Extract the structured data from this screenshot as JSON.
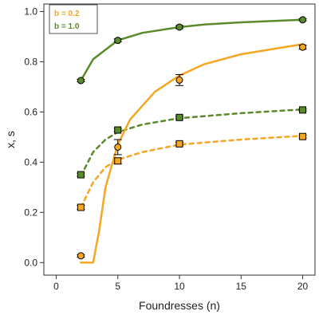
{
  "chart_data": {
    "type": "line",
    "xlabel": "Foundresses (n)",
    "ylabel": "x, s",
    "xlim": [
      -1,
      21
    ],
    "ylim": [
      -0.05,
      1.03
    ],
    "x_ticks": [
      0,
      5,
      10,
      15,
      20
    ],
    "y_ticks": [
      0.0,
      0.2,
      0.4,
      0.6,
      0.8,
      1.0
    ],
    "x_tick_labels": [
      "0",
      "5",
      "10",
      "15",
      "20"
    ],
    "y_tick_labels": [
      "0.0",
      "0.2",
      "0.4",
      "0.6",
      "0.8",
      "1.0"
    ],
    "grid": false,
    "legend_position": "top-left",
    "legend": [
      {
        "label": "b = 0.2",
        "color": "#f5a623"
      },
      {
        "label": "b = 1.0",
        "color": "#5b8a2a"
      }
    ],
    "series": [
      {
        "group": "b = 1.0",
        "variable": "x",
        "kind": "model",
        "style": "solid",
        "color": "#5b8a2a",
        "x": [
          2,
          3,
          5,
          7,
          10,
          12,
          15,
          20
        ],
        "y": [
          0.725,
          0.81,
          0.885,
          0.915,
          0.938,
          0.948,
          0.957,
          0.967
        ]
      },
      {
        "group": "b = 1.0",
        "variable": "x",
        "kind": "observed",
        "marker": "circle",
        "color": "#5b8a2a",
        "x": [
          2,
          5,
          10,
          20
        ],
        "y": [
          0.725,
          0.885,
          0.938,
          0.967
        ],
        "err": [
          0.005,
          0.006,
          0.006,
          0.004
        ]
      },
      {
        "group": "b = 1.0",
        "variable": "s",
        "kind": "model",
        "style": "dashed",
        "color": "#5b8a2a",
        "x": [
          2,
          3,
          4,
          5,
          7,
          10,
          15,
          20
        ],
        "y": [
          0.345,
          0.44,
          0.49,
          0.52,
          0.55,
          0.575,
          0.595,
          0.61
        ]
      },
      {
        "group": "b = 1.0",
        "variable": "s",
        "kind": "observed",
        "marker": "square",
        "color": "#5b8a2a",
        "x": [
          2,
          5,
          10,
          20
        ],
        "y": [
          0.35,
          0.528,
          0.578,
          0.608
        ],
        "err": [
          0.006,
          0.006,
          0.005,
          0.004
        ]
      },
      {
        "group": "b = 0.2",
        "variable": "x",
        "kind": "model",
        "style": "solid",
        "color": "#f5a623",
        "x": [
          2,
          3,
          3.5,
          4,
          5,
          6,
          8,
          10,
          12,
          15,
          20
        ],
        "y": [
          0.0,
          0.0,
          0.13,
          0.3,
          0.47,
          0.57,
          0.68,
          0.745,
          0.79,
          0.83,
          0.87
        ]
      },
      {
        "group": "b = 0.2",
        "variable": "x",
        "kind": "observed",
        "marker": "circle",
        "color": "#f5a623",
        "x": [
          2,
          5,
          10,
          20
        ],
        "y": [
          0.027,
          0.46,
          0.727,
          0.858
        ],
        "err": [
          0.005,
          0.03,
          0.022,
          0.008
        ]
      },
      {
        "group": "b = 0.2",
        "variable": "s",
        "kind": "model",
        "style": "dashed",
        "color": "#f5a623",
        "x": [
          2,
          3,
          4,
          5,
          7,
          10,
          15,
          20
        ],
        "y": [
          0.22,
          0.32,
          0.38,
          0.41,
          0.44,
          0.47,
          0.49,
          0.505
        ]
      },
      {
        "group": "b = 0.2",
        "variable": "s",
        "kind": "observed",
        "marker": "square",
        "color": "#f5a623",
        "x": [
          2,
          5,
          10,
          20
        ],
        "y": [
          0.22,
          0.405,
          0.473,
          0.502
        ],
        "err": [
          0.008,
          0.012,
          0.006,
          0.006
        ]
      }
    ]
  }
}
